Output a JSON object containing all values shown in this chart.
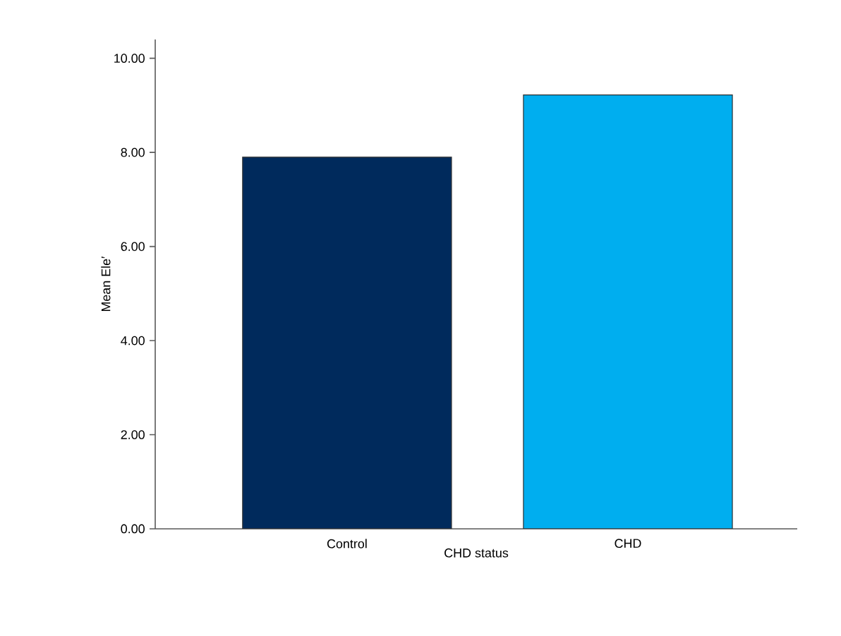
{
  "chart_data": {
    "type": "bar",
    "xlabel": "CHD status",
    "ylabel": "Mean Ele′",
    "categories": [
      "Control",
      "CHD"
    ],
    "values": [
      7.9,
      9.22
    ],
    "colors": [
      "#002a5c",
      "#00aeef"
    ],
    "ylim": [
      0,
      10.4
    ],
    "yticks": [
      {
        "value": 0,
        "label": "0.00"
      },
      {
        "value": 2,
        "label": "2.00"
      },
      {
        "value": 4,
        "label": "4.00"
      },
      {
        "value": 6,
        "label": "6.00"
      },
      {
        "value": 8,
        "label": "8.00"
      },
      {
        "value": 10,
        "label": "10.00"
      }
    ]
  }
}
